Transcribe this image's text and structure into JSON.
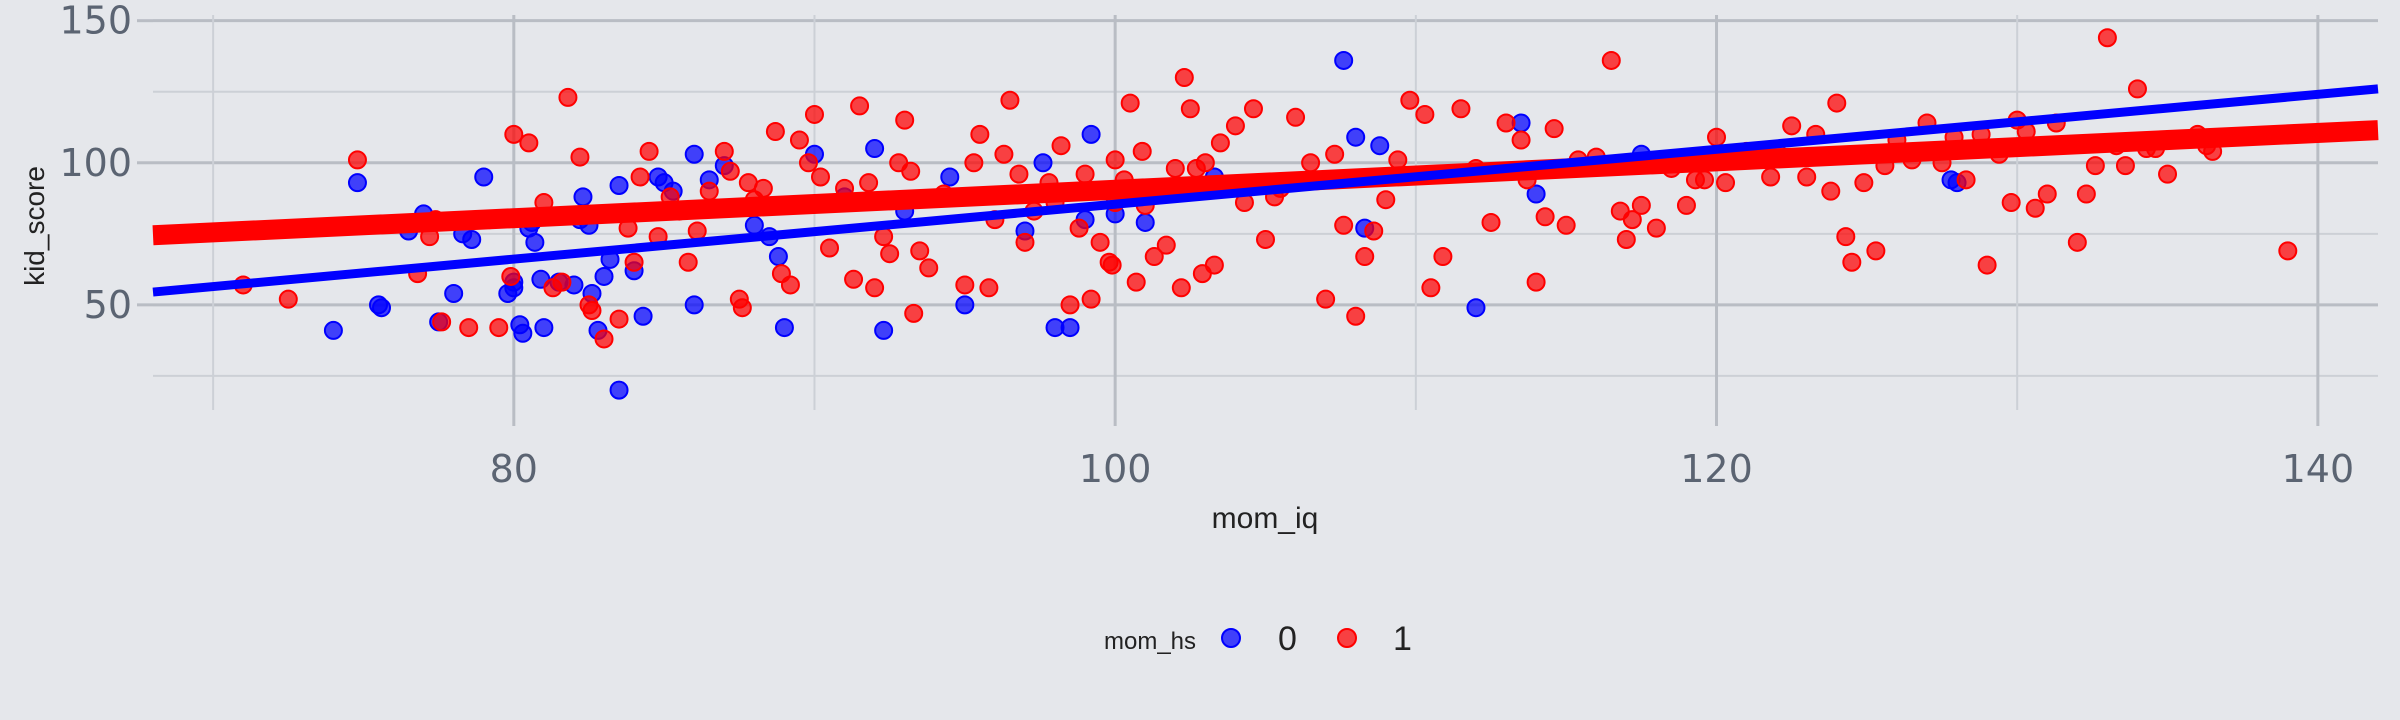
{
  "chart_data": {
    "type": "scatter",
    "xlabel": "mom_iq",
    "ylabel": "kid_score",
    "xlim": [
      68,
      142
    ],
    "ylim": [
      13,
      152
    ],
    "x_ticks": [
      80,
      100,
      120,
      140
    ],
    "x_tick_labels": [
      "80",
      "100",
      "120",
      "140"
    ],
    "y_ticks": [
      50,
      100,
      150
    ],
    "y_tick_labels": [
      "50",
      "100",
      "150"
    ],
    "grid": true,
    "legend": {
      "title": "mom_hs",
      "placement": "bottom",
      "entries": [
        "0",
        "1"
      ]
    },
    "series": [
      {
        "name": "0",
        "color": "#0000ff",
        "points": [
          [
            74,
            41
          ],
          [
            74.8,
            93
          ],
          [
            75.5,
            50
          ],
          [
            75.6,
            49
          ],
          [
            76.5,
            76
          ],
          [
            77,
            82
          ],
          [
            77.5,
            44
          ],
          [
            78,
            54
          ],
          [
            78.3,
            75
          ],
          [
            78.6,
            73
          ],
          [
            79,
            95
          ],
          [
            79.8,
            54
          ],
          [
            80,
            58
          ],
          [
            80,
            56
          ],
          [
            80.2,
            43
          ],
          [
            80.3,
            40
          ],
          [
            80.5,
            77
          ],
          [
            80.6,
            79
          ],
          [
            80.7,
            72
          ],
          [
            80.9,
            59
          ],
          [
            81,
            42
          ],
          [
            81.5,
            58
          ],
          [
            82,
            57
          ],
          [
            82.2,
            80
          ],
          [
            82.3,
            88
          ],
          [
            82.5,
            78
          ],
          [
            82.6,
            54
          ],
          [
            82.8,
            41
          ],
          [
            83,
            60
          ],
          [
            83.2,
            66
          ],
          [
            83.5,
            92
          ],
          [
            83.5,
            20
          ],
          [
            84,
            62
          ],
          [
            84.3,
            46
          ],
          [
            84.8,
            95
          ],
          [
            85,
            93
          ],
          [
            85.3,
            90
          ],
          [
            86,
            103
          ],
          [
            86,
            50
          ],
          [
            86.5,
            94
          ],
          [
            87,
            99
          ],
          [
            88,
            78
          ],
          [
            88.5,
            74
          ],
          [
            88.8,
            67
          ],
          [
            89,
            42
          ],
          [
            90,
            103
          ],
          [
            91,
            88
          ],
          [
            92,
            105
          ],
          [
            92.3,
            41
          ],
          [
            93,
            83
          ],
          [
            94.5,
            95
          ],
          [
            95,
            50
          ],
          [
            97,
            76
          ],
          [
            97.6,
            100
          ],
          [
            98,
            42
          ],
          [
            98.5,
            42
          ],
          [
            99,
            80
          ],
          [
            99.2,
            110
          ],
          [
            100,
            82
          ],
          [
            101,
            79
          ],
          [
            103.3,
            95
          ],
          [
            107.6,
            136
          ],
          [
            108,
            109
          ],
          [
            108.3,
            77
          ],
          [
            108.8,
            106
          ],
          [
            112,
            49
          ],
          [
            113.5,
            114
          ],
          [
            114,
            89
          ],
          [
            117.5,
            103
          ],
          [
            127.8,
            94
          ],
          [
            128,
            93
          ]
        ],
        "fit": [
          [
            68,
            54.5
          ],
          [
            142,
            126
          ]
        ]
      },
      {
        "name": "1",
        "color": "#ff0000",
        "points": [
          [
            71,
            57
          ],
          [
            72.5,
            52
          ],
          [
            74.8,
            101
          ],
          [
            76.8,
            61
          ],
          [
            77.2,
            74
          ],
          [
            77.4,
            80
          ],
          [
            77.6,
            44
          ],
          [
            78.5,
            42
          ],
          [
            79.5,
            42
          ],
          [
            79.2,
            80
          ],
          [
            79.9,
            60
          ],
          [
            80,
            110
          ],
          [
            80.5,
            107
          ],
          [
            81,
            86
          ],
          [
            81.3,
            56
          ],
          [
            81.6,
            58
          ],
          [
            81.8,
            123
          ],
          [
            82.2,
            102
          ],
          [
            82.5,
            50
          ],
          [
            82.6,
            48
          ],
          [
            83,
            38
          ],
          [
            83.5,
            45
          ],
          [
            83.8,
            77
          ],
          [
            84,
            65
          ],
          [
            84.2,
            95
          ],
          [
            84.5,
            104
          ],
          [
            84.8,
            74
          ],
          [
            85.2,
            88
          ],
          [
            85.5,
            83
          ],
          [
            85.8,
            65
          ],
          [
            86.1,
            76
          ],
          [
            86.5,
            90
          ],
          [
            87,
            104
          ],
          [
            87.2,
            97
          ],
          [
            87.5,
            52
          ],
          [
            87.6,
            49
          ],
          [
            87.8,
            93
          ],
          [
            88,
            87
          ],
          [
            88.3,
            91
          ],
          [
            88.7,
            111
          ],
          [
            88.9,
            61
          ],
          [
            89.2,
            57
          ],
          [
            89.5,
            108
          ],
          [
            89.8,
            100
          ],
          [
            90,
            117
          ],
          [
            90.2,
            95
          ],
          [
            90.5,
            70
          ],
          [
            90.8,
            86
          ],
          [
            91,
            91
          ],
          [
            91.3,
            59
          ],
          [
            91.5,
            120
          ],
          [
            91.8,
            93
          ],
          [
            92,
            56
          ],
          [
            92.3,
            74
          ],
          [
            92.5,
            68
          ],
          [
            92.8,
            100
          ],
          [
            93,
            115
          ],
          [
            93.2,
            97
          ],
          [
            93.3,
            47
          ],
          [
            93.5,
            69
          ],
          [
            93.8,
            63
          ],
          [
            94.3,
            89
          ],
          [
            95,
            57
          ],
          [
            95.3,
            100
          ],
          [
            95.5,
            110
          ],
          [
            95.8,
            56
          ],
          [
            96,
            80
          ],
          [
            96.3,
            103
          ],
          [
            96.5,
            122
          ],
          [
            96.8,
            96
          ],
          [
            97,
            72
          ],
          [
            97.3,
            83
          ],
          [
            97.8,
            93
          ],
          [
            98,
            86
          ],
          [
            98.2,
            106
          ],
          [
            98.5,
            50
          ],
          [
            98.8,
            77
          ],
          [
            99,
            96
          ],
          [
            99.2,
            52
          ],
          [
            99.5,
            72
          ],
          [
            99.8,
            65
          ],
          [
            99.9,
            64
          ],
          [
            100,
            101
          ],
          [
            100,
            86
          ],
          [
            100.3,
            94
          ],
          [
            100.5,
            121
          ],
          [
            100.7,
            58
          ],
          [
            100.9,
            104
          ],
          [
            101,
            85
          ],
          [
            101.3,
            67
          ],
          [
            101.7,
            71
          ],
          [
            102,
            98
          ],
          [
            102.2,
            56
          ],
          [
            102.3,
            130
          ],
          [
            102.5,
            119
          ],
          [
            102.7,
            98
          ],
          [
            102.9,
            61
          ],
          [
            103,
            100
          ],
          [
            103.3,
            64
          ],
          [
            103.5,
            107
          ],
          [
            104,
            113
          ],
          [
            104.3,
            86
          ],
          [
            104.6,
            119
          ],
          [
            105,
            73
          ],
          [
            105.3,
            88
          ],
          [
            105.5,
            91
          ],
          [
            106,
            116
          ],
          [
            106.5,
            100
          ],
          [
            107,
            52
          ],
          [
            107.3,
            103
          ],
          [
            107.6,
            78
          ],
          [
            108,
            46
          ],
          [
            108.3,
            67
          ],
          [
            108.6,
            76
          ],
          [
            109,
            87
          ],
          [
            109.4,
            101
          ],
          [
            109.8,
            122
          ],
          [
            110.3,
            117
          ],
          [
            110.5,
            56
          ],
          [
            110.9,
            67
          ],
          [
            111.5,
            119
          ],
          [
            112,
            98
          ],
          [
            112.5,
            79
          ],
          [
            113,
            114
          ],
          [
            113.5,
            108
          ],
          [
            113.7,
            94
          ],
          [
            114,
            58
          ],
          [
            114.3,
            81
          ],
          [
            114.6,
            112
          ],
          [
            115,
            78
          ],
          [
            115.4,
            101
          ],
          [
            116,
            102
          ],
          [
            116.5,
            136
          ],
          [
            116.8,
            83
          ],
          [
            117,
            73
          ],
          [
            117.2,
            80
          ],
          [
            117.5,
            85
          ],
          [
            118,
            77
          ],
          [
            118.5,
            98
          ],
          [
            119,
            85
          ],
          [
            119.3,
            94
          ],
          [
            119.6,
            94
          ],
          [
            120,
            109
          ],
          [
            120.3,
            93
          ],
          [
            121,
            104
          ],
          [
            121.5,
            102
          ],
          [
            121.8,
            95
          ],
          [
            122,
            104
          ],
          [
            122.5,
            113
          ],
          [
            123,
            95
          ],
          [
            123.3,
            110
          ],
          [
            123.8,
            90
          ],
          [
            124,
            121
          ],
          [
            124.3,
            74
          ],
          [
            124.5,
            65
          ],
          [
            124.9,
            93
          ],
          [
            125.3,
            69
          ],
          [
            125.6,
            99
          ],
          [
            126,
            108
          ],
          [
            126.5,
            101
          ],
          [
            127,
            114
          ],
          [
            127.5,
            100
          ],
          [
            127.9,
            109
          ],
          [
            128.3,
            94
          ],
          [
            128.8,
            110
          ],
          [
            129,
            64
          ],
          [
            129.4,
            103
          ],
          [
            129.8,
            86
          ],
          [
            130,
            115
          ],
          [
            130.3,
            111
          ],
          [
            130.6,
            84
          ],
          [
            131,
            89
          ],
          [
            131.3,
            114
          ],
          [
            132,
            72
          ],
          [
            132.3,
            89
          ],
          [
            132.6,
            99
          ],
          [
            133,
            144
          ],
          [
            133.3,
            106
          ],
          [
            133.6,
            99
          ],
          [
            134,
            126
          ],
          [
            134.3,
            105
          ],
          [
            134.6,
            105
          ],
          [
            135,
            96
          ],
          [
            136,
            110
          ],
          [
            136.3,
            106
          ],
          [
            136.5,
            104
          ],
          [
            139,
            69
          ]
        ],
        "fit": [
          [
            68,
            74.5
          ],
          [
            142,
            111.5
          ]
        ]
      }
    ]
  }
}
